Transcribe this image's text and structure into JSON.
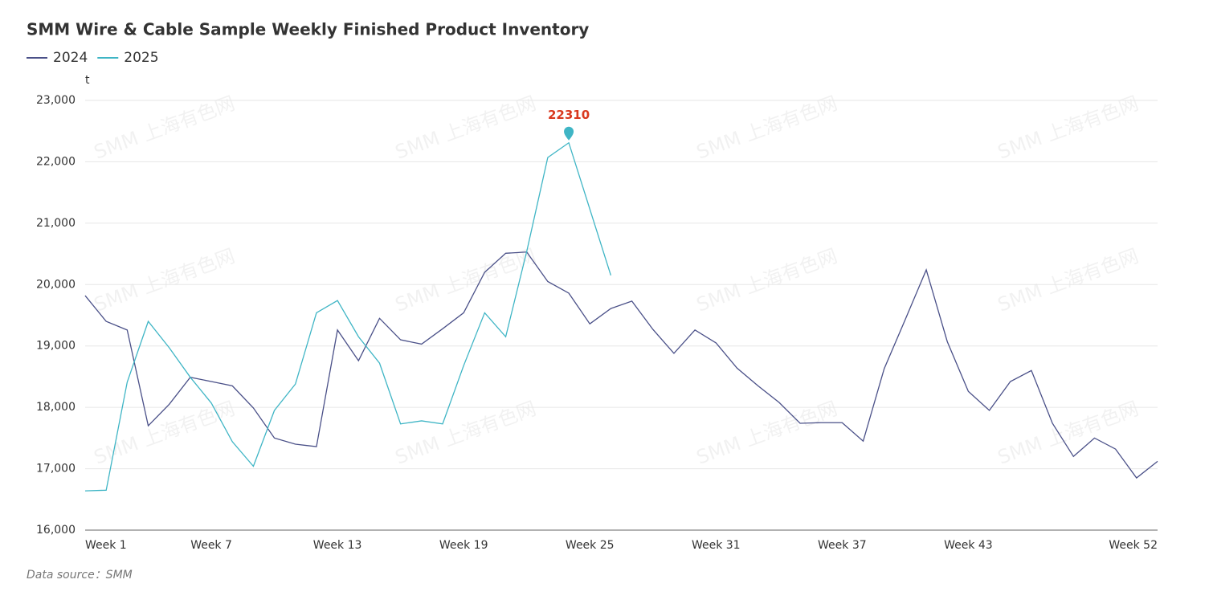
{
  "chart_data": {
    "type": "line",
    "title": "SMM Wire & Cable Sample Weekly Finished Product Inventory",
    "y_axis_label": "t",
    "source": "Data source：SMM",
    "watermark": "SMM 上海有色网",
    "categories": [
      "Week 1",
      null,
      null,
      null,
      null,
      null,
      "Week 7",
      null,
      null,
      null,
      null,
      null,
      "Week 13",
      null,
      null,
      null,
      null,
      null,
      "Week 19",
      null,
      null,
      null,
      null,
      null,
      "Week 25",
      null,
      null,
      null,
      null,
      null,
      "Week 31",
      null,
      null,
      null,
      null,
      null,
      "Week 37",
      null,
      null,
      null,
      null,
      null,
      "Week 43",
      null,
      null,
      null,
      null,
      null,
      null,
      null,
      null,
      "Week 52"
    ],
    "series": [
      {
        "name": "2024",
        "color": "#4a5088",
        "values": [
          19820,
          19400,
          19260,
          17700,
          18050,
          18490,
          18420,
          18350,
          17990,
          17500,
          17400,
          17360,
          19260,
          18760,
          19450,
          19100,
          19030,
          19280,
          19540,
          20200,
          20510,
          20530,
          20050,
          19860,
          19360,
          19610,
          19730,
          19270,
          18880,
          19260,
          19050,
          18640,
          18350,
          18080,
          17740,
          17750,
          17750,
          17450,
          18630,
          19430,
          20240,
          19070,
          18260,
          17950,
          18420,
          18600,
          17740,
          17200,
          17500,
          17320,
          16850,
          17120
        ]
      },
      {
        "name": "2025",
        "color": "#3fb5c5",
        "values": [
          16640,
          16650,
          18410,
          19400,
          18970,
          18490,
          18070,
          17440,
          17040,
          17950,
          18380,
          19540,
          19740,
          19150,
          18720,
          17730,
          17780,
          17730,
          18680,
          19540,
          19150,
          20540,
          22070,
          22310,
          21230,
          20150,
          null,
          null,
          null,
          null,
          null,
          null,
          null,
          null,
          null,
          null,
          null,
          null,
          null,
          null,
          null,
          null,
          null,
          null,
          null,
          null,
          null,
          null,
          null,
          null,
          null,
          null
        ]
      }
    ],
    "annotation": {
      "series": 1,
      "index": 23,
      "color": "#d9391f"
    },
    "ylim": [
      16000,
      23000
    ],
    "yticks": [
      {
        "value": 16000,
        "label": "16,000"
      },
      {
        "value": 17000,
        "label": "17,000"
      },
      {
        "value": 18000,
        "label": "18,000"
      },
      {
        "value": 19000,
        "label": "19,000"
      },
      {
        "value": 20000,
        "label": "20,000"
      },
      {
        "value": 21000,
        "label": "21,000"
      },
      {
        "value": 22000,
        "label": "22,000"
      },
      {
        "value": 23000,
        "label": "23,000"
      }
    ],
    "grid": true
  }
}
